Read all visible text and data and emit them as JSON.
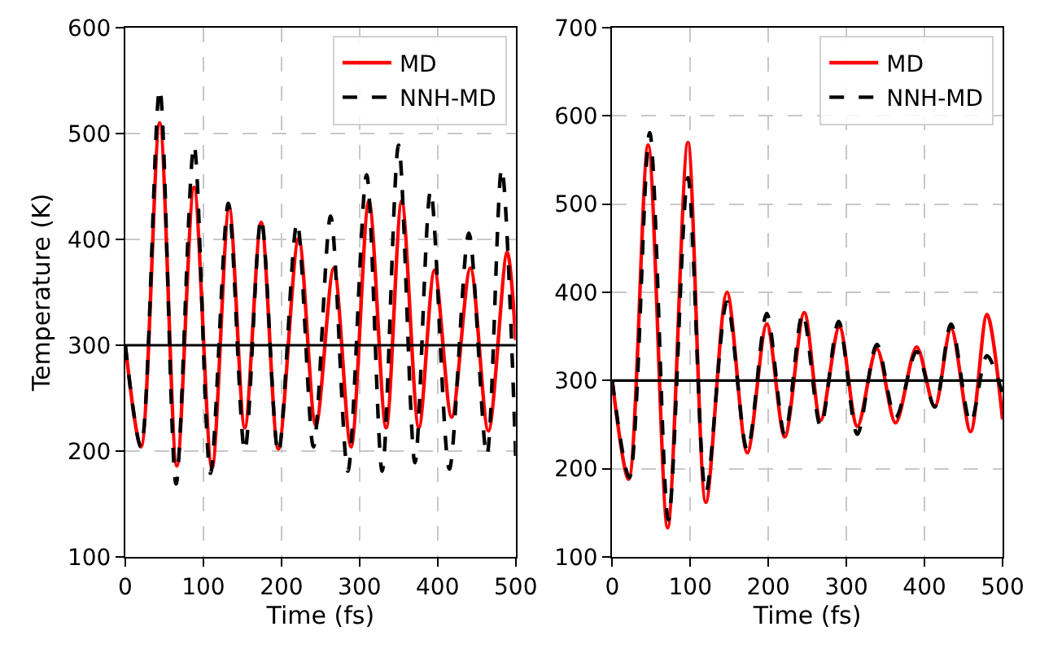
{
  "chart_data": [
    {
      "type": "line",
      "xlabel": "Time (fs)",
      "ylabel": "Temperature (K)",
      "xlim": [
        0,
        500
      ],
      "xticks": [
        0,
        100,
        200,
        300,
        400,
        500
      ],
      "ylim": [
        100,
        600
      ],
      "yticks": [
        100,
        200,
        300,
        400,
        500,
        600
      ],
      "grid": true,
      "legend": "top right",
      "ref_lines": [
        {
          "axis": "y",
          "value": 300,
          "color": "#000000"
        }
      ],
      "series": [
        {
          "name": "MD",
          "color": "#ff0000",
          "line_style": "solid",
          "x": [
            0,
            20,
            44,
            66,
            88,
            111,
            133,
            153,
            174,
            196,
            222,
            244,
            267,
            289,
            312,
            334,
            354,
            376,
            396,
            418,
            442,
            465,
            489,
            500
          ],
          "values": [
            300,
            204,
            510,
            186,
            449,
            184,
            430,
            222,
            416,
            202,
            401,
            224,
            373,
            204,
            436,
            222,
            436,
            222,
            371,
            232,
            373,
            219,
            388,
            305
          ]
        },
        {
          "name": "NNH-MD",
          "color": "#000000",
          "line_style": "dashed",
          "x": [
            0,
            20,
            44,
            65,
            88,
            109,
            132,
            153,
            174,
            196,
            220,
            241,
            263,
            285,
            309,
            329,
            350,
            371,
            391,
            415,
            440,
            463,
            482,
            500
          ],
          "values": [
            300,
            204,
            542,
            169,
            489,
            179,
            434,
            200,
            420,
            198,
            416,
            204,
            422,
            181,
            461,
            181,
            489,
            189,
            446,
            183,
            406,
            196,
            467,
            194
          ]
        }
      ]
    },
    {
      "type": "line",
      "xlabel": "Time (fs)",
      "xlim": [
        0,
        500
      ],
      "xticks": [
        0,
        100,
        200,
        300,
        400,
        500
      ],
      "ylim": [
        100,
        700
      ],
      "yticks": [
        100,
        200,
        300,
        400,
        500,
        600,
        700
      ],
      "grid": true,
      "legend": "top right",
      "ref_lines": [
        {
          "axis": "y",
          "value": 300,
          "color": "#000000"
        }
      ],
      "series": [
        {
          "name": "MD",
          "color": "#ff0000",
          "line_style": "solid",
          "x": [
            0,
            21,
            46,
            71,
            97,
            120,
            147,
            173,
            198,
            221,
            246,
            267,
            291,
            314,
            339,
            363,
            390,
            413,
            434,
            459,
            480,
            500
          ],
          "values": [
            300,
            188,
            567,
            133,
            570,
            162,
            400,
            218,
            364,
            236,
            377,
            255,
            361,
            248,
            336,
            252,
            338,
            270,
            359,
            242,
            375,
            256
          ]
        },
        {
          "name": "NNH-MD",
          "color": "#000000",
          "line_style": "dashed",
          "x": [
            0,
            22,
            48,
            72,
            97,
            120,
            147,
            173,
            198,
            221,
            244,
            267,
            290,
            314,
            339,
            363,
            390,
            413,
            434,
            459,
            480,
            500
          ],
          "values": [
            300,
            190,
            581,
            142,
            530,
            173,
            389,
            221,
            376,
            239,
            376,
            248,
            367,
            239,
            341,
            258,
            333,
            270,
            364,
            252,
            328,
            285
          ]
        }
      ]
    }
  ]
}
